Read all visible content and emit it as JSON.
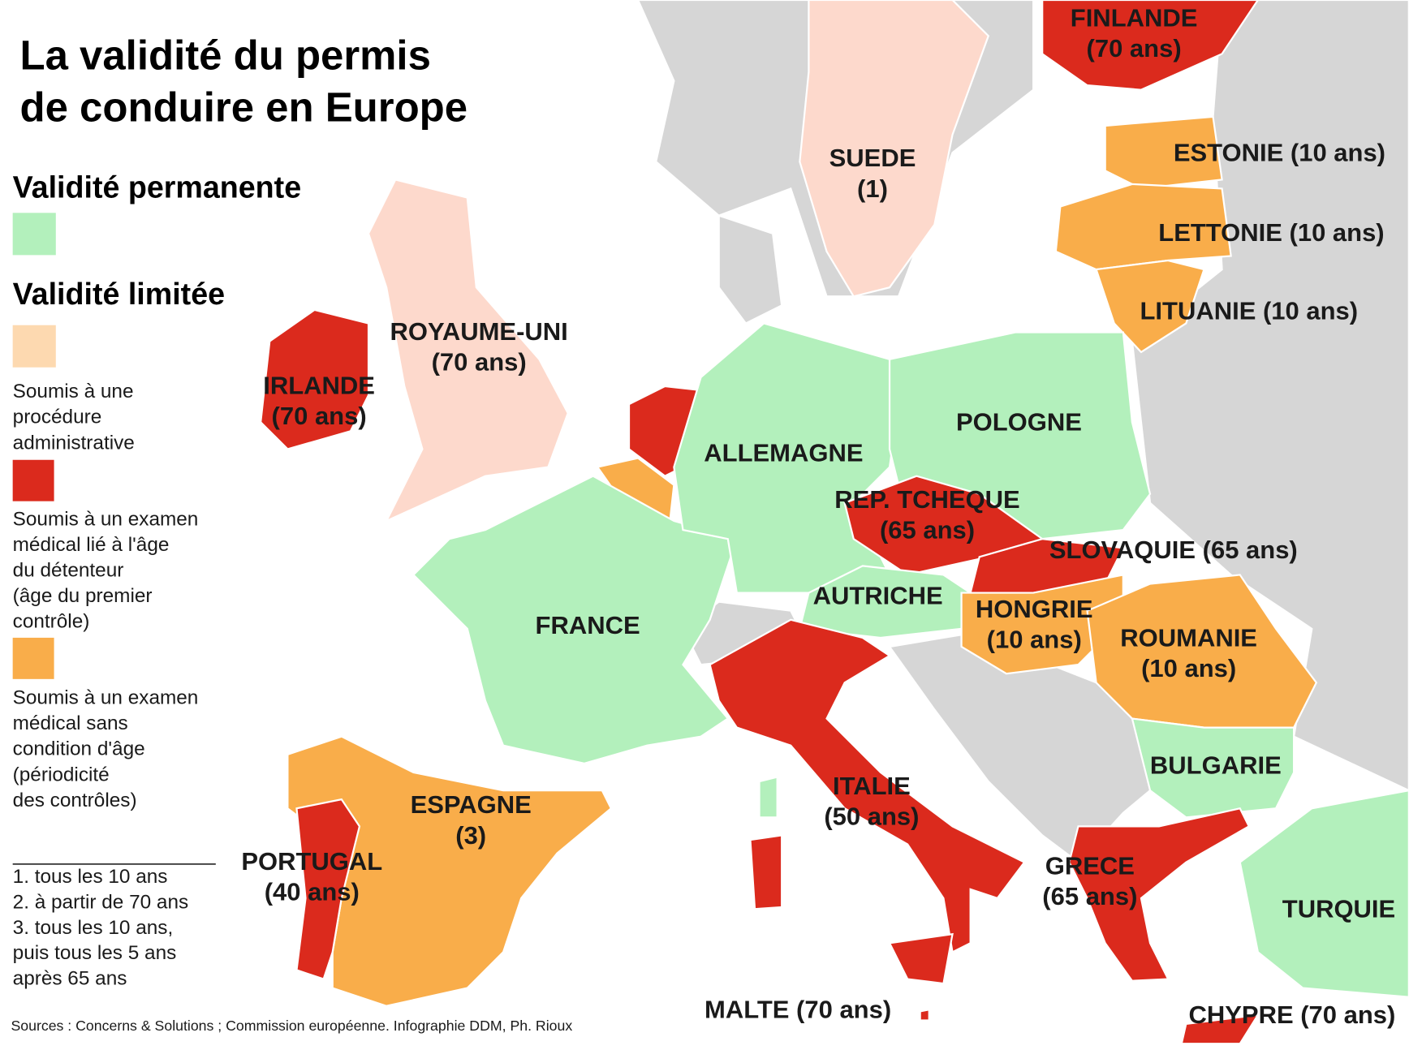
{
  "title": [
    "La validité du permis",
    "de conduire en Europe"
  ],
  "legend": {
    "permanent_heading": "Validité permanente",
    "limited_heading": "Validité limitée",
    "items": [
      [
        "Soumis à une",
        "procédure",
        "administrative"
      ],
      [
        "Soumis à un examen",
        "médical lié à l'âge",
        "du détenteur",
        "(âge du premier",
        "contrôle)"
      ],
      [
        "Soumis à un examen",
        "médical sans",
        "condition d'âge",
        "(périodicité",
        "des contrôles)"
      ]
    ]
  },
  "notes": [
    "1. tous les 10 ans",
    "2. à partir de 70 ans",
    "3. tous les 10 ans,",
    "puis tous les 5 ans",
    "après 65 ans"
  ],
  "source": "Sources : Concerns & Solutions ; Commission européenne. Infographie DDM, Ph. Rioux",
  "countries": [
    {
      "lines": [
        "FINLANDE",
        "(70 ans)"
      ]
    },
    {
      "lines": [
        "SUEDE",
        "(1)"
      ]
    },
    {
      "lines": [
        "ESTONIE (10 ans)"
      ]
    },
    {
      "lines": [
        "LETTONIE (10 ans)"
      ]
    },
    {
      "lines": [
        "LITUANIE (10 ans)"
      ]
    },
    {
      "lines": [
        "ROYAUME-UNI",
        "(70 ans)"
      ]
    },
    {
      "lines": [
        "IRLANDE",
        "(70 ans)"
      ]
    },
    {
      "lines": [
        "POLOGNE"
      ]
    },
    {
      "lines": [
        "ALLEMAGNE"
      ]
    },
    {
      "lines": [
        "REP. TCHEQUE",
        "(65 ans)"
      ]
    },
    {
      "lines": [
        "SLOVAQUIE (65 ans)"
      ]
    },
    {
      "lines": [
        "AUTRICHE"
      ]
    },
    {
      "lines": [
        "HONGRIE",
        "(10 ans)"
      ]
    },
    {
      "lines": [
        "ROUMANIE",
        "(10 ans)"
      ]
    },
    {
      "lines": [
        "FRANCE"
      ]
    },
    {
      "lines": [
        "BULGARIE"
      ]
    },
    {
      "lines": [
        "ITALIE",
        "(50 ans)"
      ]
    },
    {
      "lines": [
        "GRECE",
        "(65 ans)"
      ]
    },
    {
      "lines": [
        "ESPAGNE",
        "(3)"
      ]
    },
    {
      "lines": [
        "PORTUGAL",
        "(40 ans)"
      ]
    },
    {
      "lines": [
        "TURQUIE"
      ]
    },
    {
      "lines": [
        "MALTE (70 ans)"
      ]
    },
    {
      "lines": [
        "CHYPRE (70 ans)"
      ]
    }
  ]
}
